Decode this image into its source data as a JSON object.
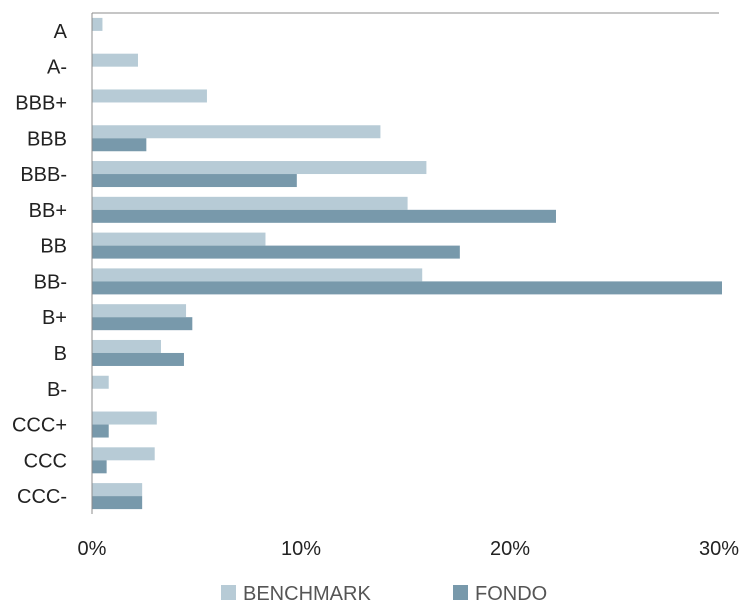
{
  "chart_data": {
    "type": "bar",
    "orientation": "horizontal",
    "categories": [
      "A",
      "A-",
      "BBB+",
      "BBB",
      "BBB-",
      "BB+",
      "BB",
      "BB-",
      "B+",
      "B",
      "B-",
      "CCC+",
      "CCC",
      "CCC-"
    ],
    "series": [
      {
        "name": "BENCHMARK",
        "values": [
          0.5,
          2.2,
          5.5,
          13.8,
          16.0,
          15.1,
          8.3,
          15.8,
          4.5,
          3.3,
          0.8,
          3.1,
          3.0,
          2.4
        ]
      },
      {
        "name": "FONDO",
        "values": [
          null,
          null,
          null,
          2.6,
          9.8,
          22.2,
          17.6,
          30.2,
          4.8,
          4.4,
          null,
          0.8,
          0.7,
          2.4
        ]
      }
    ],
    "xlim": [
      0,
      30
    ],
    "x_ticks": [
      0,
      10,
      20,
      30
    ],
    "tick_suffix": "%",
    "grid": false,
    "legend_position": "bottom",
    "colors": {
      "BENCHMARK": "#b7cbd6",
      "FONDO": "#7899ab",
      "axis": "#8c8c8c"
    }
  }
}
